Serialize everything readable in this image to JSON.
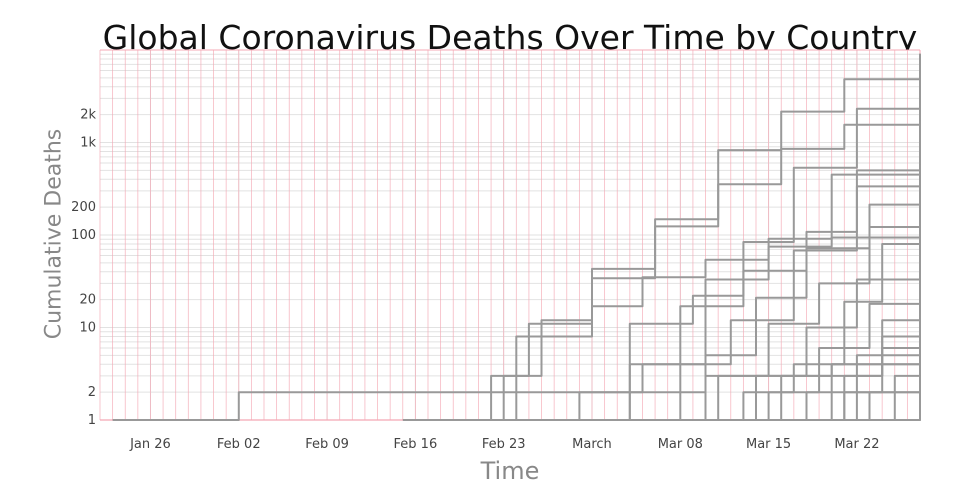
{
  "chart_data": {
    "type": "line",
    "title": "Global Coronavirus Deaths Over Time by Country",
    "xlabel": "Time",
    "ylabel": "Cumulative Deaths",
    "x_range": [
      "2020-01-22",
      "2020-03-27"
    ],
    "x_tick_labels": [
      "Jan 26",
      "Feb 02",
      "Feb 09",
      "Feb 16",
      "Feb 23",
      "March",
      "Mar 08",
      "Mar 15",
      "Mar 22"
    ],
    "x_tick_dates": [
      "2020-01-26",
      "2020-02-02",
      "2020-02-09",
      "2020-02-16",
      "2020-02-23",
      "2020-03-01",
      "2020-03-08",
      "2020-03-15",
      "2020-03-22"
    ],
    "y_scale": "log",
    "y_range": [
      1,
      10000
    ],
    "y_tick_values": [
      1,
      2,
      10,
      20,
      100,
      200,
      1000,
      2000
    ],
    "y_tick_labels": [
      "1",
      "2",
      "10",
      "20",
      "100",
      "200",
      "1k",
      "2k"
    ],
    "grid": true,
    "legend": "none",
    "colors": {
      "series_line": "#999999",
      "hover_overlay": "#f4a8b4",
      "grid": "#e2e2e2"
    },
    "series": [
      {
        "x": [
          "2020-01-23",
          "2020-02-01",
          "2020-02-02",
          "2020-03-04",
          "2020-03-10",
          "2020-03-20",
          "2020-03-27"
        ],
        "y": [
          1,
          1,
          2,
          2,
          3,
          4,
          4
        ]
      },
      {
        "x": [
          "2020-02-19",
          "2020-02-22",
          "2020-02-25",
          "2020-03-01",
          "2020-03-06",
          "2020-03-11",
          "2020-03-16",
          "2020-03-21",
          "2020-03-27"
        ],
        "y": [
          1,
          3,
          11,
          34,
          148,
          827,
          2158,
          4825,
          9134
        ]
      },
      {
        "x": [
          "2020-02-20",
          "2020-02-23",
          "2020-02-26",
          "2020-03-01",
          "2020-03-06",
          "2020-03-11",
          "2020-03-16",
          "2020-03-21",
          "2020-03-27"
        ],
        "y": [
          1,
          3,
          12,
          43,
          124,
          354,
          853,
          1556,
          2378
        ]
      },
      {
        "x": [
          "2020-02-21",
          "2020-02-24",
          "2020-03-01",
          "2020-03-05",
          "2020-03-10",
          "2020-03-15",
          "2020-03-20",
          "2020-03-27"
        ],
        "y": [
          1,
          8,
          17,
          35,
          54,
          75,
          94,
          139
        ]
      },
      {
        "x": [
          "2020-02-15",
          "2020-02-20",
          "2020-02-29",
          "2020-03-05",
          "2020-03-10",
          "2020-03-15",
          "2020-03-20",
          "2020-03-27"
        ],
        "y": [
          1,
          1,
          2,
          4,
          33,
          91,
          450,
          1995
        ]
      },
      {
        "x": [
          "2020-02-26",
          "2020-03-04",
          "2020-03-08",
          "2020-03-13",
          "2020-03-17",
          "2020-03-22",
          "2020-03-27"
        ],
        "y": [
          1,
          4,
          17,
          84,
          533,
          2311,
          5138
        ]
      },
      {
        "x": [
          "2020-02-29",
          "2020-03-04",
          "2020-03-09",
          "2020-03-13",
          "2020-03-18",
          "2020-03-22",
          "2020-03-27"
        ],
        "y": [
          1,
          11,
          22,
          41,
          108,
          499,
          1711
        ]
      },
      {
        "x": [
          "2020-03-03",
          "2020-03-08",
          "2020-03-12",
          "2020-03-17",
          "2020-03-22",
          "2020-03-27"
        ],
        "y": [
          1,
          4,
          12,
          68,
          335,
          1019
        ]
      },
      {
        "x": [
          "2020-03-06",
          "2020-03-10",
          "2020-03-14",
          "2020-03-18",
          "2020-03-23",
          "2020-03-27"
        ],
        "y": [
          1,
          5,
          21,
          72,
          213,
          580
        ]
      },
      {
        "x": [
          "2020-03-07",
          "2020-03-11",
          "2020-03-15",
          "2020-03-19",
          "2020-03-23",
          "2020-03-27"
        ],
        "y": [
          1,
          3,
          11,
          30,
          122,
          353
        ]
      },
      {
        "x": [
          "2020-03-09",
          "2020-03-13",
          "2020-03-17",
          "2020-03-21",
          "2020-03-24",
          "2020-03-27"
        ],
        "y": [
          1,
          2,
          4,
          19,
          80,
          220
        ]
      },
      {
        "x": [
          "2020-03-10",
          "2020-03-14",
          "2020-03-18",
          "2020-03-22",
          "2020-03-27"
        ],
        "y": [
          1,
          3,
          10,
          33,
          96
        ]
      },
      {
        "x": [
          "2020-03-11",
          "2020-03-15",
          "2020-03-19",
          "2020-03-23",
          "2020-03-27"
        ],
        "y": [
          1,
          2,
          6,
          18,
          54
        ]
      },
      {
        "x": [
          "2020-03-12",
          "2020-03-16",
          "2020-03-20",
          "2020-03-24",
          "2020-03-27"
        ],
        "y": [
          1,
          3,
          4,
          12,
          34
        ]
      },
      {
        "x": [
          "2020-03-13",
          "2020-03-17",
          "2020-03-21",
          "2020-03-24",
          "2020-03-27"
        ],
        "y": [
          1,
          1,
          3,
          8,
          25
        ]
      },
      {
        "x": [
          "2020-03-14",
          "2020-03-18",
          "2020-03-22",
          "2020-03-27"
        ],
        "y": [
          1,
          2,
          5,
          17
        ]
      },
      {
        "x": [
          "2020-03-16",
          "2020-03-20",
          "2020-03-24",
          "2020-03-27"
        ],
        "y": [
          1,
          3,
          6,
          11
        ]
      },
      {
        "x": [
          "2020-03-17",
          "2020-03-21",
          "2020-03-24",
          "2020-03-27"
        ],
        "y": [
          1,
          2,
          4,
          8
        ]
      },
      {
        "x": [
          "2020-03-18",
          "2020-03-22",
          "2020-03-25",
          "2020-03-27"
        ],
        "y": [
          1,
          2,
          3,
          6
        ]
      },
      {
        "x": [
          "2020-03-19",
          "2020-03-23",
          "2020-03-27"
        ],
        "y": [
          1,
          2,
          4
        ]
      },
      {
        "x": [
          "2020-03-21",
          "2020-03-24",
          "2020-03-27"
        ],
        "y": [
          1,
          1,
          3
        ]
      },
      {
        "x": [
          "2020-03-22",
          "2020-03-25",
          "2020-03-27"
        ],
        "y": [
          1,
          2,
          2
        ]
      },
      {
        "x": [
          "2020-03-24",
          "2020-03-27"
        ],
        "y": [
          1,
          2
        ]
      }
    ]
  }
}
